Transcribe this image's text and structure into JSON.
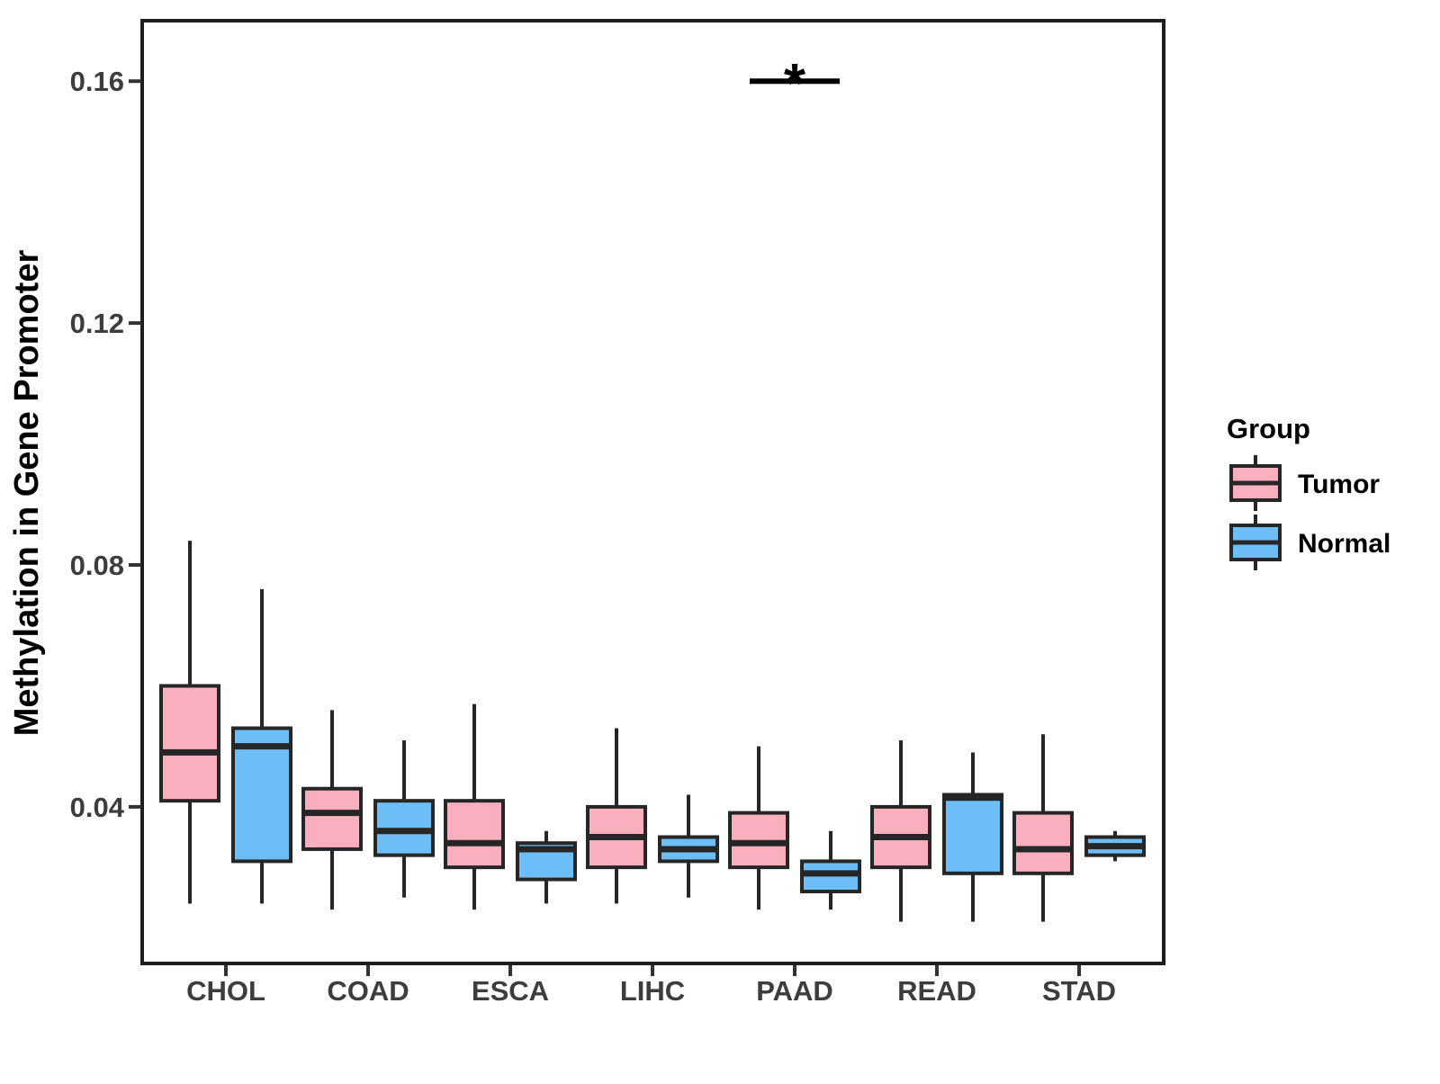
{
  "chart_data": {
    "type": "boxplot",
    "title": "",
    "xlabel": "",
    "ylabel": "Methylation in Gene Promoter",
    "legend_title": "Group",
    "categories": [
      "CHOL",
      "COAD",
      "ESCA",
      "LIHC",
      "PAAD",
      "READ",
      "STAD"
    ],
    "box_stats_order": [
      "whisker_min",
      "q1",
      "median",
      "q3",
      "whisker_max"
    ],
    "series": [
      {
        "name": "Tumor",
        "color": "#FAAFBE",
        "boxes": [
          [
            0.024,
            0.041,
            0.049,
            0.06,
            0.084
          ],
          [
            0.023,
            0.033,
            0.039,
            0.043,
            0.056
          ],
          [
            0.023,
            0.03,
            0.034,
            0.041,
            0.057
          ],
          [
            0.024,
            0.03,
            0.035,
            0.04,
            0.053
          ],
          [
            0.023,
            0.03,
            0.034,
            0.039,
            0.05
          ],
          [
            0.021,
            0.03,
            0.035,
            0.04,
            0.051
          ],
          [
            0.021,
            0.029,
            0.033,
            0.039,
            0.052
          ]
        ]
      },
      {
        "name": "Normal",
        "color": "#6DBEF6",
        "boxes": [
          [
            0.024,
            0.031,
            0.05,
            0.053,
            0.076
          ],
          [
            0.025,
            0.032,
            0.036,
            0.041,
            0.051
          ],
          [
            0.024,
            0.028,
            0.033,
            0.034,
            0.036
          ],
          [
            0.025,
            0.031,
            0.033,
            0.035,
            0.042
          ],
          [
            0.023,
            0.026,
            0.029,
            0.031,
            0.036
          ],
          [
            0.021,
            0.029,
            0.0415,
            0.042,
            0.049
          ],
          [
            0.031,
            0.032,
            0.0335,
            0.035,
            0.036
          ]
        ]
      }
    ],
    "yticks": [
      0.04,
      0.08,
      0.12,
      0.16
    ],
    "ytick_labels": [
      "0.04",
      "0.08",
      "0.12",
      "0.16"
    ],
    "ylim": [
      0.0141,
      0.17
    ],
    "grid": "off",
    "legend_position": "right",
    "annotation": {
      "symbol": "*",
      "category": "PAAD",
      "y": 0.16
    },
    "colors": {
      "box_outline": "#262626",
      "panel_border": "#1e1e1e",
      "tick": "#333333",
      "annotation": "#000000"
    }
  }
}
